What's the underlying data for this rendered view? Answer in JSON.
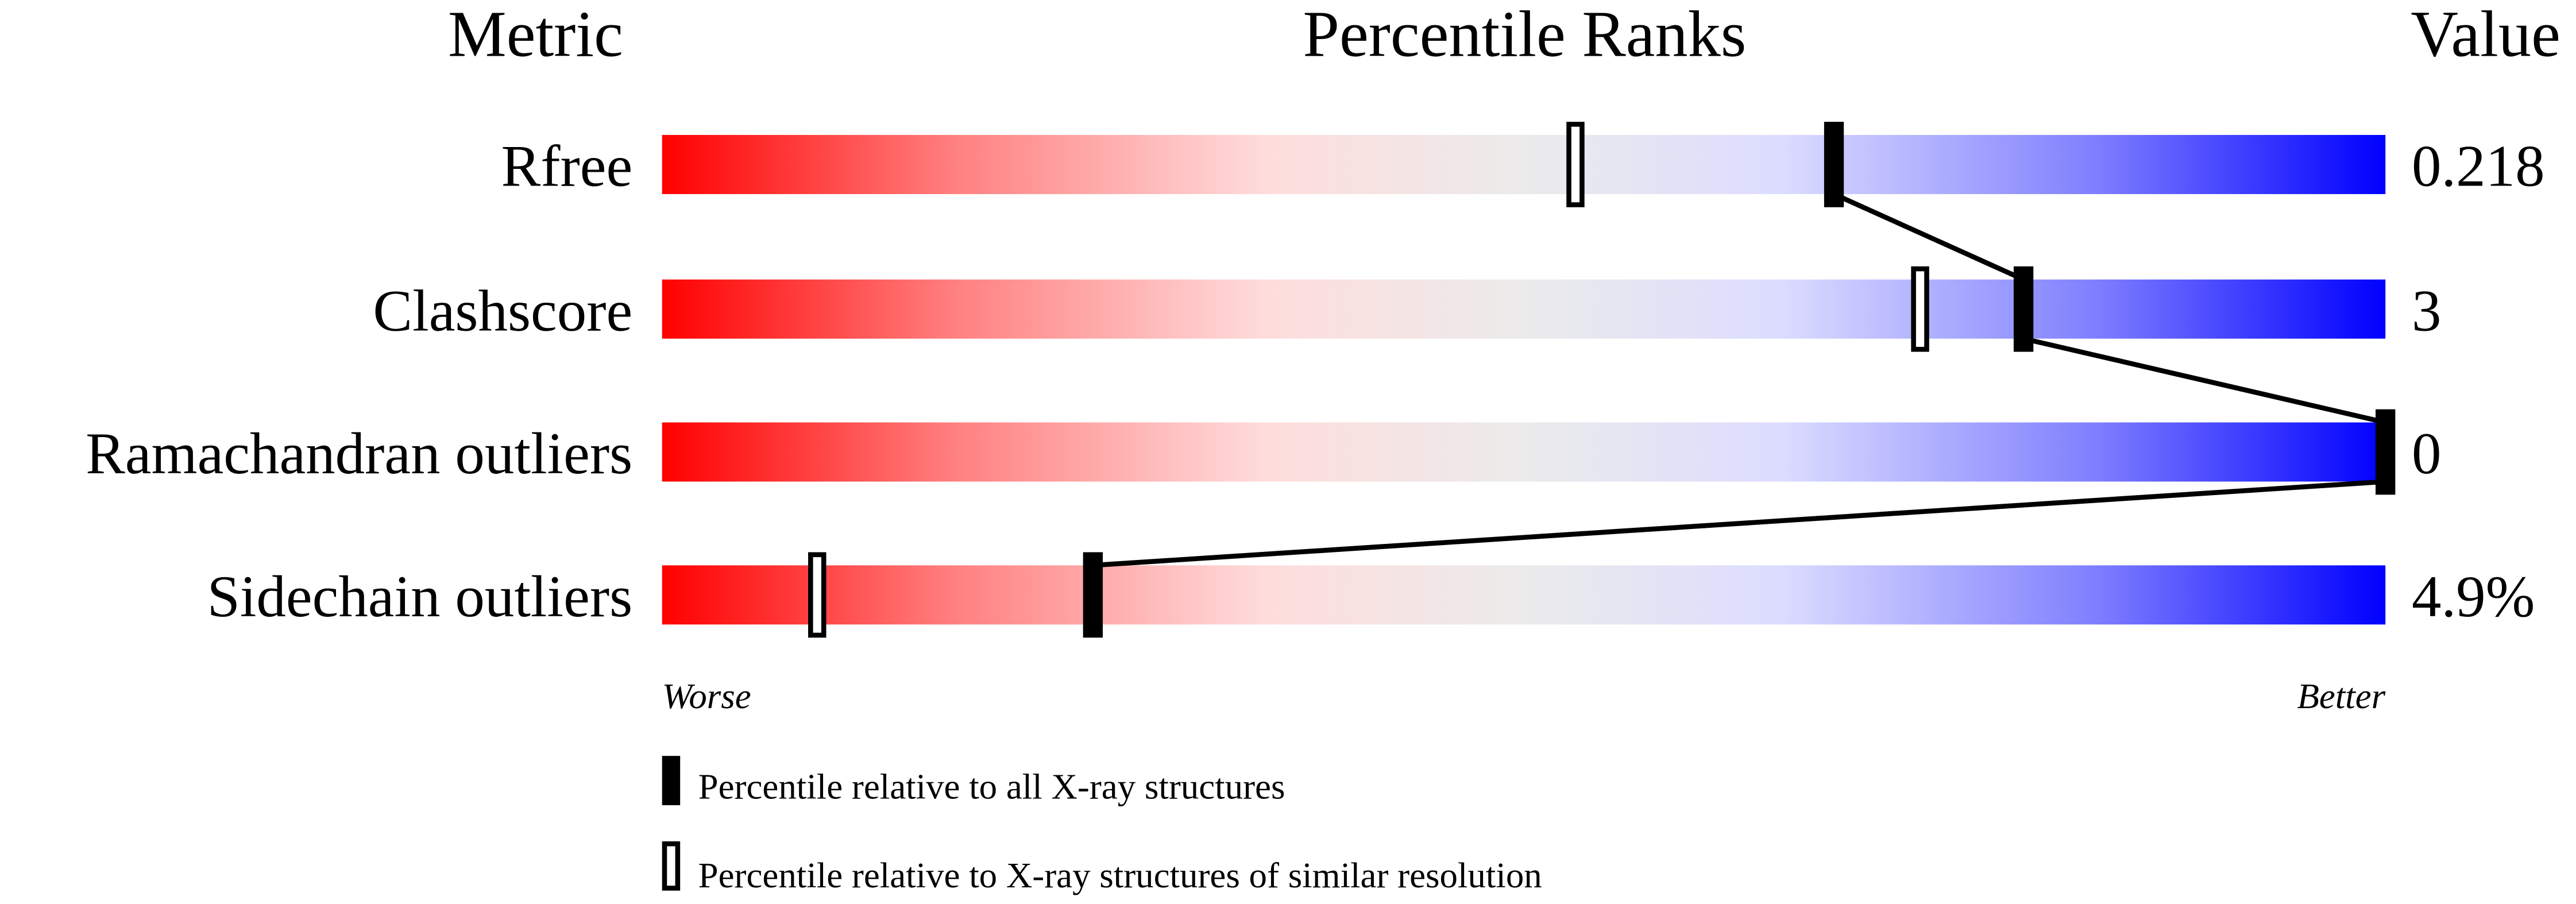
{
  "chart_data": {
    "type": "bar",
    "headers": {
      "metric": "Metric",
      "percentile": "Percentile Ranks",
      "value": "Value"
    },
    "xlim": [
      0,
      100
    ],
    "metrics": [
      {
        "name": "Rfree",
        "value": "0.218",
        "percentile_all": 68,
        "percentile_similar": 53
      },
      {
        "name": "Clashscore",
        "value": "3",
        "percentile_all": 79,
        "percentile_similar": 73
      },
      {
        "name": "Ramachandran outliers",
        "value": "0",
        "percentile_all": 100,
        "percentile_similar": 100
      },
      {
        "name": "Sidechain outliers",
        "value": "4.9%",
        "percentile_all": 25,
        "percentile_similar": 9
      }
    ],
    "axis": {
      "worse": "Worse",
      "better": "Better"
    },
    "legend": {
      "all": "Percentile relative to all X-ray structures",
      "similar": "Percentile relative to X-ray structures of similar resolution"
    },
    "colors": {
      "worse": "#ff0000",
      "mid_red": "#ffdcdc",
      "neutral": "#ebebeb",
      "mid_blue": "#dcdcff",
      "better": "#0000ff",
      "marker": "#000000"
    }
  }
}
